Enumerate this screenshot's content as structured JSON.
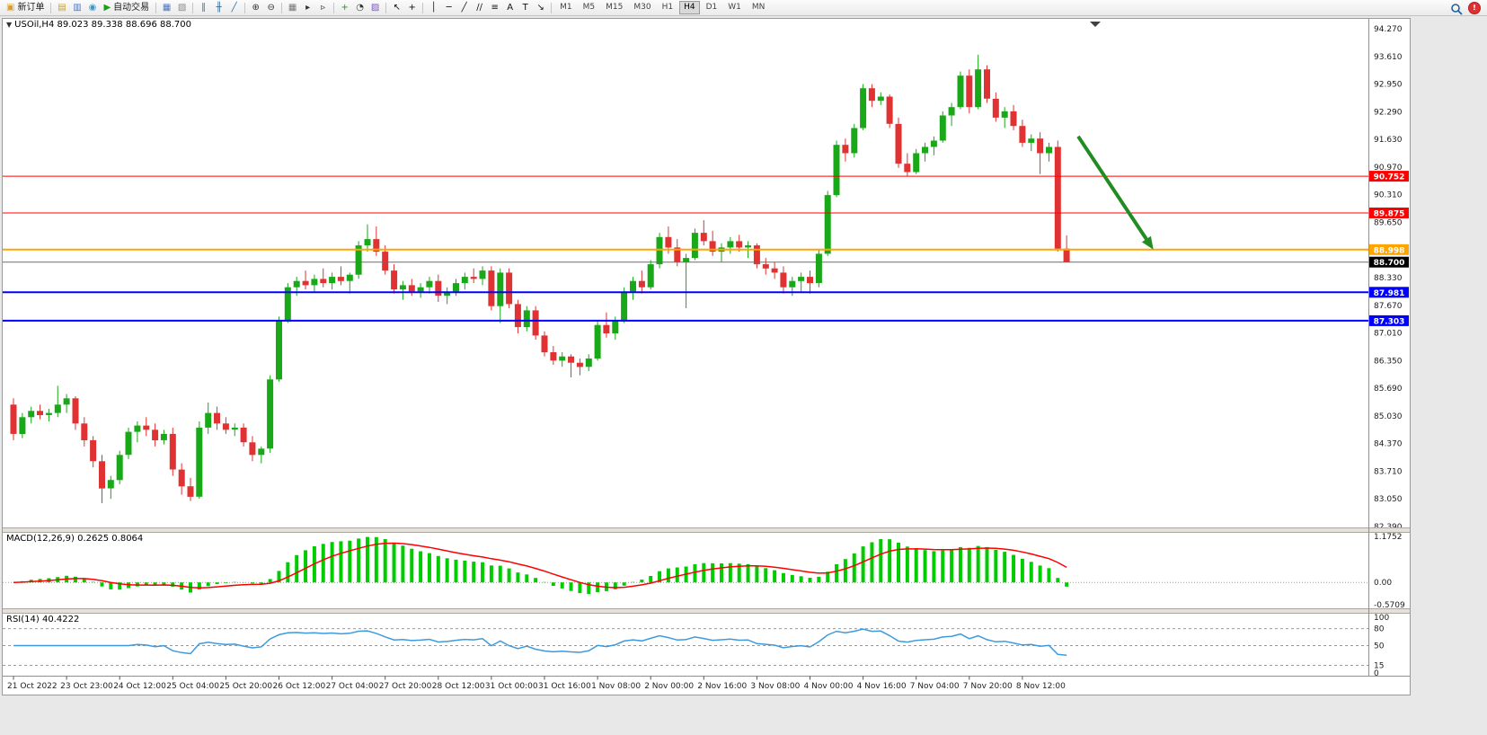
{
  "toolbar": {
    "items": [
      {
        "kind": "button",
        "name": "new-order-button",
        "glyph": "▣",
        "glyph_color": "#d8a030",
        "label": "新订单"
      },
      {
        "kind": "sep"
      },
      {
        "kind": "icon",
        "name": "market-watch-icon",
        "glyph": "▤",
        "color": "#c8a030"
      },
      {
        "kind": "icon",
        "name": "data-window-icon",
        "glyph": "▥",
        "color": "#4878c8"
      },
      {
        "kind": "icon",
        "name": "navigator-icon",
        "glyph": "◉",
        "color": "#3898c8"
      },
      {
        "kind": "button",
        "name": "auto-trading-button",
        "glyph": "▶",
        "glyph_color": "#18a018",
        "label": "自动交易"
      },
      {
        "kind": "sep"
      },
      {
        "kind": "icon",
        "name": "new-chart-icon",
        "glyph": "▦",
        "color": "#4878c8"
      },
      {
        "kind": "icon",
        "name": "profiles-icon",
        "glyph": "▧",
        "color": "#888888"
      },
      {
        "kind": "sep"
      },
      {
        "kind": "icon",
        "name": "bar-chart-icon",
        "glyph": "∥",
        "color": "#2f6ea0"
      },
      {
        "kind": "icon",
        "name": "candlestick-icon",
        "glyph": "╫",
        "color": "#2f6ea0"
      },
      {
        "kind": "icon",
        "name": "line-chart-icon",
        "glyph": "╱",
        "color": "#2f6ea0"
      },
      {
        "kind": "sep"
      },
      {
        "kind": "icon",
        "name": "zoom-in-icon",
        "glyph": "⊕",
        "color": "#333333"
      },
      {
        "kind": "icon",
        "name": "zoom-out-icon",
        "glyph": "⊖",
        "color": "#333333"
      },
      {
        "kind": "sep"
      },
      {
        "kind": "icon",
        "name": "tile-windows-icon",
        "glyph": "▦",
        "color": "#777777"
      },
      {
        "kind": "icon",
        "name": "auto-scroll-icon",
        "glyph": "▸",
        "color": "#333333"
      },
      {
        "kind": "icon",
        "name": "chart-shift-icon",
        "glyph": "▹",
        "color": "#333333"
      },
      {
        "kind": "sep"
      },
      {
        "kind": "icon",
        "name": "indicators-icon",
        "glyph": "+",
        "color": "#18a018"
      },
      {
        "kind": "icon",
        "name": "periods-icon",
        "glyph": "◔",
        "color": "#333333"
      },
      {
        "kind": "icon",
        "name": "templates-icon",
        "glyph": "▨",
        "color": "#7858b0"
      },
      {
        "kind": "sep"
      },
      {
        "kind": "icon",
        "name": "cursor-icon",
        "glyph": "↖",
        "color": "#111111"
      },
      {
        "kind": "icon",
        "name": "crosshair-icon",
        "glyph": "+",
        "color": "#111111"
      },
      {
        "kind": "sep"
      },
      {
        "kind": "icon",
        "name": "vertical-line-icon",
        "glyph": "│",
        "color": "#111111"
      },
      {
        "kind": "icon",
        "name": "horizontal-line-icon",
        "glyph": "─",
        "color": "#111111"
      },
      {
        "kind": "icon",
        "name": "trendline-icon",
        "glyph": "╱",
        "color": "#111111"
      },
      {
        "kind": "icon",
        "name": "channel-icon",
        "glyph": "∕∕",
        "color": "#111111"
      },
      {
        "kind": "icon",
        "name": "fibonacci-icon",
        "glyph": "≡",
        "color": "#111111"
      },
      {
        "kind": "icon",
        "name": "text-icon",
        "glyph": "A",
        "color": "#111111"
      },
      {
        "kind": "icon",
        "name": "label-icon",
        "glyph": "T",
        "color": "#111111"
      },
      {
        "kind": "icon",
        "name": "arrows-icon",
        "glyph": "↘",
        "color": "#111111"
      },
      {
        "kind": "sep"
      }
    ],
    "timeframes": {
      "options": [
        "M1",
        "M5",
        "M15",
        "M30",
        "H1",
        "H4",
        "D1",
        "W1",
        "MN"
      ],
      "active": "H4"
    }
  },
  "chart": {
    "title": "USOil,H4 89.023 89.338 88.696 88.700"
  },
  "indicators": {
    "macd_label": "MACD(12,26,9) 0.2625 0.8064",
    "rsi_label": "RSI(14) 40.4222"
  },
  "chart_data": {
    "type": "candlestick",
    "symbol": "USOil",
    "timeframe": "H4",
    "ohlc": {
      "open": 89.023,
      "high": 89.338,
      "low": 88.696,
      "close": 88.7
    },
    "y_axis": {
      "max": 94.27,
      "min": 82.39,
      "tick_labels": [
        "94.270",
        "93.610",
        "92.950",
        "92.290",
        "91.630",
        "90.970",
        "90.310",
        "89.650",
        "88.330",
        "87.670",
        "87.010",
        "86.350",
        "85.690",
        "85.030",
        "84.370",
        "83.710",
        "83.050",
        "82.390"
      ]
    },
    "time_labels": [
      "21 Oct 2022",
      "23 Oct 23:00",
      "24 Oct 12:00",
      "25 Oct 04:00",
      "25 Oct 20:00",
      "26 Oct 12:00",
      "27 Oct 04:00",
      "27 Oct 20:00",
      "28 Oct 12:00",
      "31 Oct 00:00",
      "31 Oct 16:00",
      "1 Nov 08:00",
      "2 Nov 00:00",
      "2 Nov 16:00",
      "3 Nov 08:00",
      "4 Nov 00:00",
      "4 Nov 16:00",
      "7 Nov 04:00",
      "7 Nov 20:00",
      "8 Nov 12:00"
    ],
    "bars_per_time_label": 6,
    "candle_up_color": "#18a818",
    "candle_down_color": "#e03232",
    "candles": [
      [
        85.3,
        85.45,
        84.45,
        84.6
      ],
      [
        84.6,
        85.1,
        84.5,
        85.0
      ],
      [
        85.0,
        85.25,
        84.85,
        85.15
      ],
      [
        85.15,
        85.3,
        84.95,
        85.05
      ],
      [
        85.05,
        85.2,
        84.9,
        85.1
      ],
      [
        85.1,
        85.75,
        85.0,
        85.3
      ],
      [
        85.3,
        85.55,
        85.1,
        85.45
      ],
      [
        85.45,
        85.5,
        84.7,
        84.85
      ],
      [
        84.85,
        85.0,
        84.3,
        84.45
      ],
      [
        84.45,
        84.55,
        83.8,
        83.95
      ],
      [
        83.95,
        84.1,
        82.95,
        83.3
      ],
      [
        83.3,
        83.6,
        83.05,
        83.5
      ],
      [
        83.5,
        84.2,
        83.4,
        84.1
      ],
      [
        84.1,
        84.75,
        84.0,
        84.65
      ],
      [
        84.65,
        84.9,
        84.4,
        84.8
      ],
      [
        84.8,
        85.0,
        84.55,
        84.7
      ],
      [
        84.7,
        84.85,
        84.3,
        84.45
      ],
      [
        84.45,
        84.7,
        84.35,
        84.6
      ],
      [
        84.6,
        84.75,
        83.6,
        83.75
      ],
      [
        83.75,
        83.9,
        83.15,
        83.35
      ],
      [
        83.35,
        83.55,
        83.0,
        83.1
      ],
      [
        83.1,
        84.9,
        83.05,
        84.75
      ],
      [
        84.75,
        85.35,
        84.6,
        85.1
      ],
      [
        85.1,
        85.25,
        84.7,
        84.85
      ],
      [
        84.85,
        85.0,
        84.6,
        84.7
      ],
      [
        84.7,
        84.85,
        84.55,
        84.75
      ],
      [
        84.75,
        84.85,
        84.3,
        84.4
      ],
      [
        84.4,
        84.55,
        83.95,
        84.1
      ],
      [
        84.1,
        84.3,
        83.9,
        84.25
      ],
      [
        84.25,
        86.0,
        84.15,
        85.9
      ],
      [
        85.9,
        87.4,
        85.85,
        87.3
      ],
      [
        87.3,
        88.2,
        87.25,
        88.1
      ],
      [
        88.1,
        88.35,
        87.9,
        88.25
      ],
      [
        88.25,
        88.5,
        88.05,
        88.15
      ],
      [
        88.15,
        88.4,
        88.0,
        88.3
      ],
      [
        88.3,
        88.55,
        88.1,
        88.2
      ],
      [
        88.2,
        88.45,
        88.05,
        88.35
      ],
      [
        88.35,
        88.6,
        88.15,
        88.25
      ],
      [
        88.25,
        88.45,
        87.95,
        88.4
      ],
      [
        88.4,
        89.2,
        88.3,
        89.1
      ],
      [
        89.1,
        89.6,
        88.95,
        89.25
      ],
      [
        89.25,
        89.55,
        88.85,
        88.95
      ],
      [
        88.95,
        89.1,
        88.4,
        88.5
      ],
      [
        88.5,
        88.65,
        87.95,
        88.05
      ],
      [
        88.05,
        88.25,
        87.8,
        88.15
      ],
      [
        88.15,
        88.3,
        87.9,
        88.0
      ],
      [
        88.0,
        88.2,
        87.85,
        88.1
      ],
      [
        88.1,
        88.35,
        87.95,
        88.25
      ],
      [
        88.25,
        88.4,
        87.75,
        87.9
      ],
      [
        87.9,
        88.1,
        87.7,
        88.0
      ],
      [
        88.0,
        88.3,
        87.9,
        88.2
      ],
      [
        88.2,
        88.45,
        88.05,
        88.35
      ],
      [
        88.35,
        88.55,
        88.2,
        88.3
      ],
      [
        88.3,
        88.6,
        88.15,
        88.5
      ],
      [
        88.5,
        88.6,
        87.55,
        87.65
      ],
      [
        87.65,
        88.55,
        87.25,
        88.45
      ],
      [
        88.45,
        88.55,
        87.6,
        87.7
      ],
      [
        87.7,
        87.8,
        87.0,
        87.15
      ],
      [
        87.15,
        87.65,
        87.05,
        87.55
      ],
      [
        87.55,
        87.65,
        86.85,
        86.95
      ],
      [
        86.95,
        87.05,
        86.45,
        86.55
      ],
      [
        86.55,
        86.7,
        86.25,
        86.35
      ],
      [
        86.35,
        86.55,
        86.2,
        86.45
      ],
      [
        86.45,
        86.5,
        85.95,
        86.3
      ],
      [
        86.3,
        86.4,
        86.0,
        86.2
      ],
      [
        86.2,
        86.5,
        86.1,
        86.4
      ],
      [
        86.4,
        87.3,
        86.35,
        87.2
      ],
      [
        87.2,
        87.5,
        86.9,
        87.0
      ],
      [
        87.0,
        87.4,
        86.85,
        87.3
      ],
      [
        87.3,
        88.1,
        87.25,
        88.0
      ],
      [
        88.0,
        88.35,
        87.8,
        88.25
      ],
      [
        88.25,
        88.5,
        87.95,
        88.1
      ],
      [
        88.1,
        88.75,
        88.05,
        88.65
      ],
      [
        88.65,
        89.4,
        88.55,
        89.3
      ],
      [
        89.3,
        89.55,
        88.9,
        89.05
      ],
      [
        89.05,
        89.25,
        88.6,
        88.7
      ],
      [
        88.7,
        88.9,
        87.6,
        88.8
      ],
      [
        88.8,
        89.5,
        88.75,
        89.4
      ],
      [
        89.4,
        89.7,
        89.1,
        89.2
      ],
      [
        89.2,
        89.45,
        88.85,
        88.95
      ],
      [
        88.95,
        89.15,
        88.7,
        89.05
      ],
      [
        89.05,
        89.3,
        88.9,
        89.2
      ],
      [
        89.2,
        89.35,
        88.95,
        89.05
      ],
      [
        89.05,
        89.2,
        88.8,
        89.1
      ],
      [
        89.1,
        89.15,
        88.55,
        88.65
      ],
      [
        88.65,
        88.8,
        88.4,
        88.55
      ],
      [
        88.55,
        88.7,
        88.3,
        88.45
      ],
      [
        88.45,
        88.6,
        87.95,
        88.1
      ],
      [
        88.1,
        88.35,
        87.9,
        88.25
      ],
      [
        88.25,
        88.45,
        88.0,
        88.35
      ],
      [
        88.35,
        88.5,
        87.95,
        88.2
      ],
      [
        88.2,
        89.0,
        88.1,
        88.9
      ],
      [
        88.9,
        90.4,
        88.85,
        90.3
      ],
      [
        90.3,
        91.6,
        90.25,
        91.5
      ],
      [
        91.5,
        91.65,
        91.1,
        91.3
      ],
      [
        91.3,
        92.0,
        91.2,
        91.9
      ],
      [
        91.9,
        92.95,
        91.85,
        92.85
      ],
      [
        92.85,
        92.95,
        92.4,
        92.55
      ],
      [
        92.55,
        92.75,
        92.45,
        92.65
      ],
      [
        92.65,
        92.7,
        91.9,
        92.0
      ],
      [
        92.0,
        92.15,
        90.95,
        91.05
      ],
      [
        91.05,
        91.3,
        90.75,
        90.85
      ],
      [
        90.85,
        91.4,
        90.8,
        91.3
      ],
      [
        91.3,
        91.55,
        91.1,
        91.45
      ],
      [
        91.45,
        91.7,
        91.25,
        91.6
      ],
      [
        91.6,
        92.3,
        91.55,
        92.2
      ],
      [
        92.2,
        92.5,
        91.95,
        92.4
      ],
      [
        92.4,
        93.25,
        92.35,
        93.15
      ],
      [
        93.15,
        93.3,
        92.25,
        92.4
      ],
      [
        92.4,
        93.65,
        92.35,
        93.3
      ],
      [
        93.3,
        93.4,
        92.5,
        92.6
      ],
      [
        92.6,
        92.75,
        92.05,
        92.15
      ],
      [
        92.15,
        92.4,
        91.9,
        92.3
      ],
      [
        92.3,
        92.45,
        91.85,
        91.95
      ],
      [
        91.95,
        92.1,
        91.45,
        91.55
      ],
      [
        91.55,
        91.75,
        91.35,
        91.65
      ],
      [
        91.65,
        91.8,
        90.8,
        91.3
      ],
      [
        91.3,
        91.55,
        91.1,
        91.45
      ],
      [
        91.45,
        91.6,
        88.95,
        89.02
      ],
      [
        89.023,
        89.338,
        88.696,
        88.7
      ]
    ],
    "horizontal_lines": [
      {
        "price": 90.752,
        "label": "90.752",
        "color": "#ff0000",
        "width": 1
      },
      {
        "price": 89.875,
        "label": "89.875",
        "color": "#ff0000",
        "width": 1
      },
      {
        "price": 88.998,
        "label": "88.998",
        "color": "#ffa500",
        "width": 2
      },
      {
        "price": 87.981,
        "label": "87.981",
        "color": "#0000ff",
        "width": 2
      },
      {
        "price": 87.303,
        "label": "87.303",
        "color": "#0000ff",
        "width": 2
      }
    ],
    "bid_line": {
      "price": 88.7,
      "label": "88.700",
      "line_color": "#6a6a6a",
      "badge_color": "#000000"
    },
    "trend_arrow": {
      "from_bar": 120.3,
      "from_price": 91.7,
      "to_bar": 128.8,
      "to_price": 89.0,
      "color": "#228b22"
    },
    "macd": {
      "params": "12,26,9",
      "value_main": 0.2625,
      "value_signal": 0.8064,
      "scale_max": 1.1752,
      "scale_min": -0.5709,
      "scale_labels": [
        "1.1752",
        "0.00",
        "-0.5709"
      ],
      "histogram_color": "#00cc00",
      "signal_color": "#ff0000"
    },
    "rsi": {
      "period": 14,
      "value": 40.4222,
      "line_color": "#3e9ade",
      "scale_labels": [
        {
          "v": 100,
          "t": "100"
        },
        {
          "v": 80,
          "t": "80"
        },
        {
          "v": 50,
          "t": "50"
        },
        {
          "v": 15,
          "t": "15"
        },
        {
          "v": 0,
          "t": "0"
        }
      ],
      "levels": [
        80,
        50,
        15
      ]
    }
  }
}
